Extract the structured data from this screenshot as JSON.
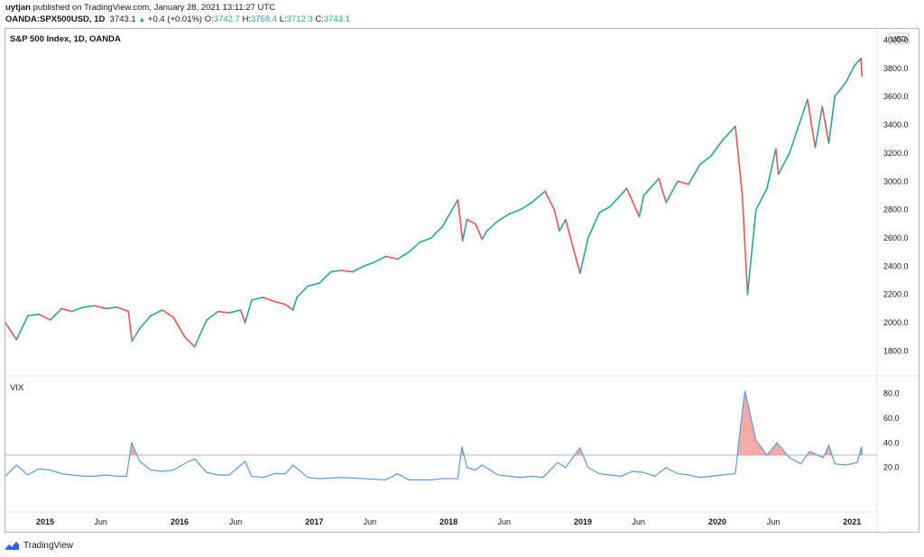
{
  "header": {
    "line1_user": "uytjan",
    "line1_rest": " published on TradingView.com, January 28, 2021 13:11:27 UTC",
    "symbol": "OANDA:SPX500USD, 1D",
    "last": "3743.1",
    "change": "+0.4 (+0.01%)",
    "o_label": "O:",
    "o": "3742.7",
    "h_label": "H:",
    "h": "3758.4",
    "l_label": "L:",
    "l": "3712.3",
    "c_label": "C:",
    "c": "3743.1"
  },
  "colors": {
    "up": "#26a69a",
    "down": "#ef5350",
    "vix_line": "#5b9bd5",
    "vix_fill": "#f28c8c",
    "threshold": "#b2b5be",
    "border": "#b2b5be"
  },
  "footer": {
    "brand": "TradingView"
  },
  "chart_data": [
    {
      "type": "line",
      "title": "S&P 500 Index, 1D, OANDA",
      "currency_label": "USD",
      "ylim": [
        1650,
        4060
      ],
      "y_ticks": [
        "1800.0",
        "2000.0",
        "2200.0",
        "2400.0",
        "2600.0",
        "2800.0",
        "3000.0",
        "3200.0",
        "3400.0",
        "3600.0",
        "3800.0",
        "4000.0"
      ],
      "x_ticks": [
        "2015",
        "Jun",
        "2016",
        "Jun",
        "2017",
        "Jun",
        "2018",
        "Jun",
        "2019",
        "Jun",
        "2020",
        "Jun",
        "2021"
      ],
      "x_tick_dates": [
        "2015-01-01",
        "2015-06-01",
        "2016-01-01",
        "2016-06-01",
        "2017-01-01",
        "2017-06-01",
        "2018-01-01",
        "2018-06-01",
        "2019-01-01",
        "2019-06-01",
        "2020-01-01",
        "2020-06-01",
        "2021-01-01"
      ],
      "x_range": [
        "2014-09-15",
        "2021-03-10"
      ],
      "series": [
        {
          "dates": [
            "2014-09-15",
            "2014-10-15",
            "2014-11-15",
            "2014-12-15",
            "2015-01-15",
            "2015-02-15",
            "2015-03-15",
            "2015-04-15",
            "2015-05-15",
            "2015-06-15",
            "2015-07-15",
            "2015-08-15",
            "2015-08-25",
            "2015-09-15",
            "2015-10-15",
            "2015-11-15",
            "2015-12-15",
            "2016-01-15",
            "2016-02-11",
            "2016-03-15",
            "2016-04-15",
            "2016-05-15",
            "2016-06-15",
            "2016-06-27",
            "2016-07-15",
            "2016-08-15",
            "2016-09-15",
            "2016-10-15",
            "2016-11-04",
            "2016-11-15",
            "2016-12-15",
            "2017-01-15",
            "2017-02-15",
            "2017-03-15",
            "2017-04-15",
            "2017-05-15",
            "2017-06-15",
            "2017-07-15",
            "2017-08-15",
            "2017-09-15",
            "2017-10-15",
            "2017-11-15",
            "2017-12-15",
            "2018-01-26",
            "2018-02-08",
            "2018-02-20",
            "2018-03-15",
            "2018-04-02",
            "2018-04-15",
            "2018-05-15",
            "2018-06-15",
            "2018-07-15",
            "2018-08-15",
            "2018-09-20",
            "2018-10-15",
            "2018-10-29",
            "2018-11-15",
            "2018-12-24",
            "2019-01-15",
            "2019-02-15",
            "2019-03-15",
            "2019-04-30",
            "2019-06-03",
            "2019-06-15",
            "2019-07-26",
            "2019-08-15",
            "2019-09-15",
            "2019-10-15",
            "2019-11-15",
            "2019-12-15",
            "2020-01-15",
            "2020-02-19",
            "2020-03-09",
            "2020-03-23",
            "2020-04-15",
            "2020-05-15",
            "2020-06-08",
            "2020-06-15",
            "2020-07-15",
            "2020-08-15",
            "2020-09-02",
            "2020-09-23",
            "2020-10-12",
            "2020-10-30",
            "2020-11-15",
            "2020-12-15",
            "2021-01-08",
            "2021-01-25",
            "2021-01-28"
          ],
          "values": [
            2000,
            1880,
            2050,
            2060,
            2020,
            2100,
            2080,
            2110,
            2120,
            2100,
            2110,
            2080,
            1870,
            1960,
            2050,
            2090,
            2040,
            1900,
            1830,
            2020,
            2080,
            2070,
            2090,
            2000,
            2160,
            2180,
            2150,
            2130,
            2090,
            2180,
            2260,
            2280,
            2360,
            2370,
            2360,
            2400,
            2430,
            2470,
            2450,
            2500,
            2570,
            2600,
            2680,
            2870,
            2580,
            2730,
            2700,
            2590,
            2650,
            2720,
            2770,
            2800,
            2850,
            2930,
            2800,
            2650,
            2730,
            2350,
            2600,
            2780,
            2820,
            2950,
            2750,
            2900,
            3020,
            2850,
            3000,
            2980,
            3120,
            3180,
            3290,
            3390,
            2900,
            2200,
            2800,
            2950,
            3230,
            3050,
            3200,
            3440,
            3580,
            3240,
            3530,
            3270,
            3600,
            3700,
            3820,
            3870,
            3743
          ]
        }
      ]
    },
    {
      "type": "area",
      "title": "VIX",
      "ylim": [
        -13,
        92
      ],
      "y_ticks": [
        "20.0",
        "40.0",
        "60.0",
        "80.0"
      ],
      "threshold": 30,
      "series": [
        {
          "dates": [
            "2014-09-15",
            "2014-10-15",
            "2014-11-15",
            "2014-12-15",
            "2015-01-15",
            "2015-02-15",
            "2015-03-15",
            "2015-04-15",
            "2015-05-15",
            "2015-06-15",
            "2015-07-15",
            "2015-08-10",
            "2015-08-24",
            "2015-09-15",
            "2015-10-15",
            "2015-11-15",
            "2015-12-15",
            "2016-01-20",
            "2016-02-11",
            "2016-03-15",
            "2016-04-15",
            "2016-05-15",
            "2016-06-27",
            "2016-07-15",
            "2016-08-15",
            "2016-09-15",
            "2016-10-15",
            "2016-11-04",
            "2016-12-15",
            "2017-01-15",
            "2017-03-15",
            "2017-05-15",
            "2017-07-15",
            "2017-08-15",
            "2017-09-15",
            "2017-11-15",
            "2017-12-15",
            "2018-01-26",
            "2018-02-06",
            "2018-02-20",
            "2018-03-15",
            "2018-04-02",
            "2018-05-15",
            "2018-06-15",
            "2018-07-15",
            "2018-08-15",
            "2018-09-15",
            "2018-10-24",
            "2018-11-15",
            "2018-12-24",
            "2019-01-15",
            "2019-02-15",
            "2019-03-15",
            "2019-04-15",
            "2019-05-15",
            "2019-06-15",
            "2019-07-15",
            "2019-08-15",
            "2019-09-15",
            "2019-10-15",
            "2019-11-15",
            "2019-12-15",
            "2020-01-15",
            "2020-02-19",
            "2020-02-28",
            "2020-03-16",
            "2020-04-15",
            "2020-05-15",
            "2020-06-11",
            "2020-07-15",
            "2020-08-15",
            "2020-09-08",
            "2020-10-15",
            "2020-10-30",
            "2020-11-15",
            "2020-12-15",
            "2021-01-15",
            "2021-01-27",
            "2021-01-28"
          ],
          "values": [
            13,
            22,
            14,
            19,
            18,
            15,
            14,
            13,
            13,
            14,
            13,
            13,
            40,
            25,
            18,
            17,
            18,
            24,
            27,
            16,
            14,
            14,
            25,
            13,
            12,
            15,
            15,
            22,
            12,
            11,
            12,
            11,
            10,
            15,
            10,
            10,
            11,
            11,
            37,
            20,
            18,
            22,
            14,
            13,
            12,
            13,
            12,
            24,
            20,
            36,
            20,
            15,
            14,
            13,
            17,
            16,
            13,
            20,
            15,
            14,
            12,
            13,
            14,
            15,
            40,
            82,
            42,
            30,
            40,
            28,
            23,
            33,
            28,
            38,
            23,
            22,
            24,
            37,
            30
          ]
        }
      ]
    }
  ]
}
